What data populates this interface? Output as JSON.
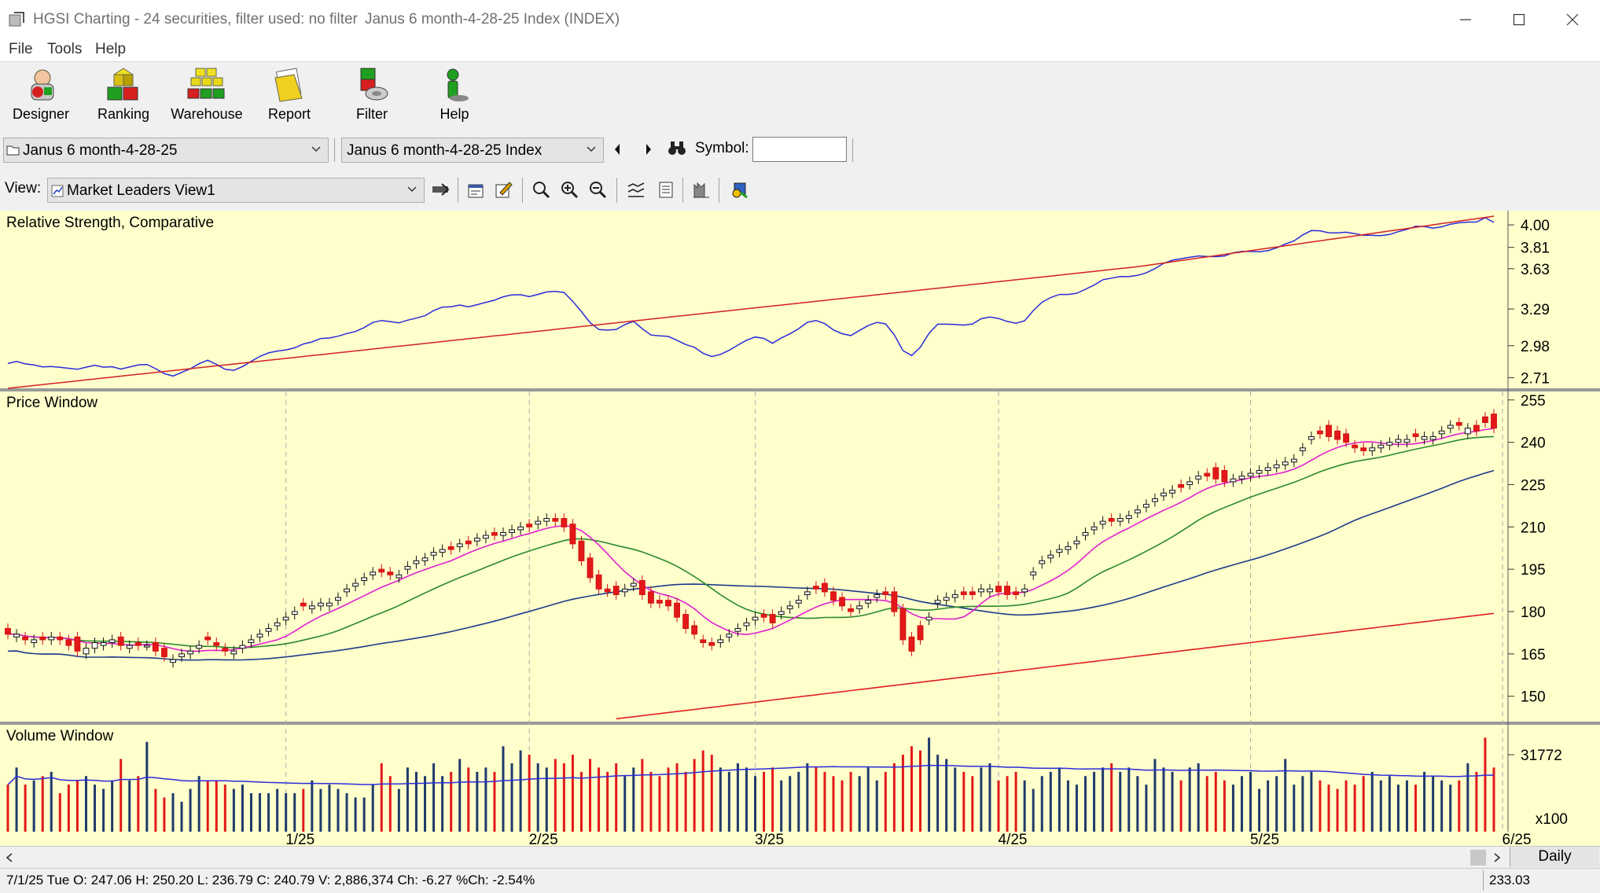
{
  "window": {
    "app_title": "HGSI Charting - 24 securities, filter used: no filter",
    "doc_title": "Janus 6 month-4-28-25 Index (INDEX)"
  },
  "menu": [
    "File",
    "Tools",
    "Help"
  ],
  "toolbar": {
    "buttons": [
      {
        "label": "Designer",
        "icon": "designer-icon"
      },
      {
        "label": "Ranking",
        "icon": "ranking-icon"
      },
      {
        "label": "Warehouse",
        "icon": "warehouse-icon"
      },
      {
        "label": "Report",
        "icon": "report-icon"
      },
      {
        "label": "Filter",
        "icon": "filter-icon"
      },
      {
        "label": "Help",
        "icon": "help-icon"
      }
    ]
  },
  "selectors": {
    "list_value": "Janus 6 month-4-28-25",
    "security_value": "Janus 6 month-4-28-25 Index",
    "symbol_label": "Symbol:",
    "symbol_value": "",
    "view_label": "View:",
    "view_value": "Market Leaders View1"
  },
  "panels": {
    "rs_title": "Relative Strength, Comparative",
    "price_title": "Price Window",
    "volume_title": "Volume Window"
  },
  "chart_data": {
    "type": "candlestick",
    "x_labels": [
      "1/25",
      "2/25",
      "3/25",
      "4/25",
      "5/25",
      "6/25"
    ],
    "rs_axis": [
      "4.00",
      "3.81",
      "3.63",
      "3.29",
      "2.98",
      "2.71"
    ],
    "price_axis": [
      "255",
      "240",
      "225",
      "210",
      "195",
      "180",
      "165",
      "150"
    ],
    "volume_axis": [
      "31772"
    ],
    "volume_unit": "x100",
    "periodicity": "Daily",
    "current_value": "233.03",
    "colors": {
      "up": "#1f3a6b",
      "down": "#e31919",
      "rs": "#2b2bdc",
      "rs_ma": "#d42020",
      "ma_fast": "#e020d0",
      "ma_mid": "#2a8a2a",
      "ma_slow": "#1e3a8a",
      "ma_long": "#e02020"
    },
    "price_closes": [
      172,
      172,
      170,
      170,
      170,
      171,
      170,
      168,
      166,
      167,
      169,
      169,
      170,
      168,
      168,
      168,
      168,
      166,
      164,
      163,
      165,
      166,
      168,
      170,
      168,
      166,
      166,
      168,
      170,
      172,
      174,
      176,
      178,
      180,
      182,
      182,
      183,
      183,
      185,
      188,
      190,
      192,
      194,
      194,
      193,
      193,
      196,
      198,
      199,
      201,
      202,
      202,
      204,
      204,
      206,
      207,
      207,
      208,
      209,
      210,
      210,
      212,
      213,
      212,
      210,
      204,
      198,
      192,
      188,
      187,
      186,
      188,
      190,
      186,
      183,
      183,
      182,
      178,
      174,
      172,
      169,
      168,
      170,
      172,
      174,
      176,
      178,
      178,
      176,
      180,
      182,
      184,
      187,
      188,
      187,
      184,
      182,
      180,
      182,
      184,
      186,
      186,
      180,
      170,
      166,
      170,
      178,
      184,
      185,
      186,
      186,
      186,
      188,
      188,
      187,
      186,
      186,
      188,
      194,
      198,
      200,
      202,
      203,
      205,
      208,
      210,
      212,
      212,
      213,
      214,
      216,
      218,
      220,
      222,
      223,
      224,
      226,
      228,
      228,
      227,
      226,
      227,
      228,
      229,
      230,
      231,
      232,
      233,
      234,
      238,
      242,
      243,
      242,
      241,
      240,
      238,
      237,
      238,
      239,
      240,
      241,
      241,
      242,
      242,
      242,
      244,
      246,
      246,
      245,
      244,
      247,
      245
    ],
    "price_opens": [
      174,
      171,
      171,
      169,
      171,
      170,
      171,
      170,
      171,
      165,
      167,
      168,
      169,
      171,
      167,
      169,
      168,
      169,
      167,
      162,
      164,
      165,
      167,
      171,
      169,
      167,
      165,
      167,
      169,
      171,
      173,
      175,
      177,
      179,
      183,
      181,
      182,
      182,
      184,
      187,
      189,
      191,
      193,
      195,
      194,
      192,
      195,
      197,
      198,
      200,
      201,
      203,
      203,
      205,
      205,
      206,
      208,
      207,
      208,
      209,
      211,
      211,
      212,
      213,
      213,
      211,
      205,
      199,
      193,
      188,
      189,
      187,
      189,
      191,
      187,
      184,
      184,
      183,
      179,
      175,
      170,
      169,
      169,
      171,
      173,
      175,
      177,
      179,
      179,
      179,
      181,
      183,
      186,
      189,
      190,
      187,
      185,
      181,
      181,
      183,
      185,
      187,
      187,
      181,
      171,
      175,
      177,
      183,
      184,
      185,
      187,
      187,
      187,
      187,
      189,
      189,
      187,
      187,
      193,
      197,
      199,
      201,
      202,
      204,
      207,
      209,
      211,
      213,
      212,
      213,
      215,
      217,
      219,
      221,
      222,
      225,
      225,
      227,
      229,
      231,
      230,
      226,
      227,
      228,
      229,
      230,
      231,
      232,
      233,
      237,
      241,
      244,
      246,
      244,
      243,
      239,
      238,
      237,
      238,
      239,
      240,
      240,
      243,
      241,
      241,
      243,
      245,
      247,
      243,
      246,
      249,
      250
    ],
    "volumes": [
      22,
      30,
      22,
      24,
      26,
      28,
      18,
      22,
      24,
      26,
      22,
      20,
      24,
      34,
      24,
      26,
      42,
      20,
      16,
      18,
      14,
      20,
      26,
      24,
      24,
      22,
      20,
      22,
      18,
      18,
      18,
      20,
      18,
      18,
      20,
      24,
      20,
      22,
      20,
      18,
      16,
      16,
      22,
      32,
      26,
      20,
      30,
      28,
      26,
      32,
      26,
      28,
      34,
      30,
      28,
      30,
      28,
      40,
      32,
      38,
      36,
      32,
      30,
      34,
      32,
      36,
      28,
      34,
      30,
      28,
      32,
      26,
      30,
      34,
      28,
      26,
      30,
      32,
      28,
      34,
      38,
      36,
      30,
      28,
      32,
      30,
      26,
      28,
      30,
      24,
      26,
      28,
      32,
      30,
      28,
      26,
      24,
      28,
      26,
      30,
      24,
      28,
      32,
      36,
      40,
      38,
      44,
      36,
      34,
      30,
      28,
      26,
      30,
      32,
      24,
      26,
      28,
      24,
      20,
      26,
      28,
      30,
      24,
      22,
      26,
      28,
      30,
      32,
      28,
      30,
      26,
      22,
      34,
      30,
      28,
      24,
      30,
      32,
      26,
      28,
      24,
      22,
      26,
      28,
      20,
      24,
      26,
      34,
      22,
      26,
      28,
      24,
      22,
      20,
      24,
      22,
      26,
      28,
      24,
      26,
      22,
      24,
      22,
      28,
      26,
      24,
      22,
      24,
      32,
      28,
      44,
      30
    ]
  },
  "status": {
    "bar_info": "7/1/25 Tue O: 247.06 H: 250.20 L: 236.79 C: 240.79 V: 2,886,374 Ch: -6.27 %Ch: -2.54%"
  }
}
